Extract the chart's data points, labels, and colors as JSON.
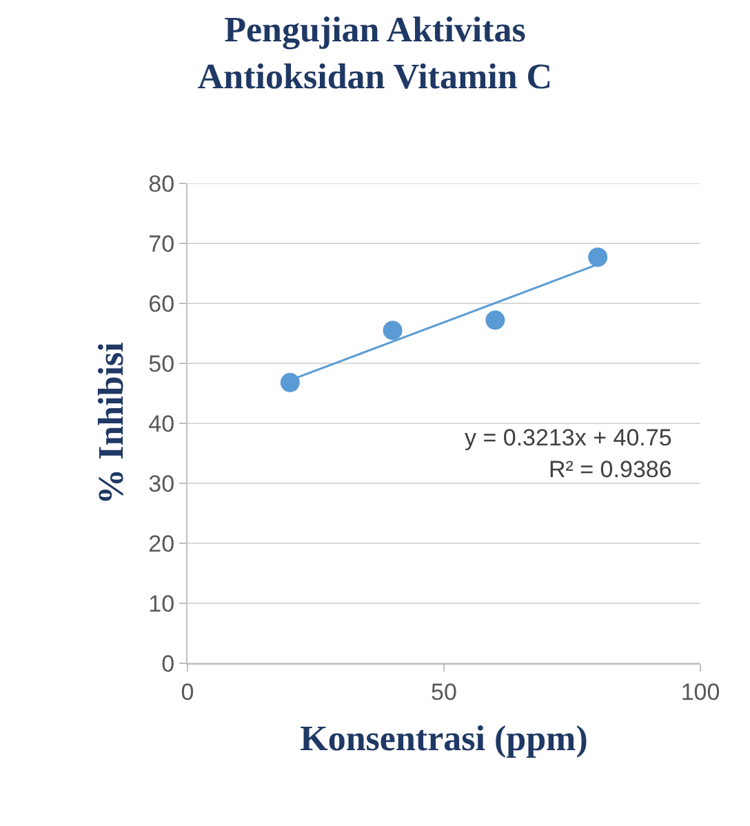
{
  "chart_data": {
    "type": "scatter",
    "title": "Pengujian Aktivitas\nAntioksidan Vitamin C",
    "xlabel": "Konsentrasi (ppm)",
    "ylabel": "% Inhibisi",
    "x": [
      20,
      40,
      60,
      80
    ],
    "series": [
      {
        "color": "#5b9bd5",
        "values": [
          46.8,
          55.5,
          57.2,
          67.7
        ],
        "marker": "circle"
      },
      {
        "type": "line",
        "color": "#5b9bd5",
        "x": [
          20,
          80
        ],
        "values": [
          47.2,
          66.5
        ],
        "line_style": "solid"
      }
    ],
    "annotations": [
      "y = 0.3213x + 40.75",
      "R² = 0.9386"
    ],
    "xlim": [
      0,
      100
    ],
    "xticks": [
      0,
      50,
      100
    ],
    "ylim": [
      0,
      80
    ],
    "yticks": [
      0,
      10,
      20,
      30,
      40,
      50,
      60,
      70,
      80
    ],
    "grid": "y",
    "legend": false
  }
}
